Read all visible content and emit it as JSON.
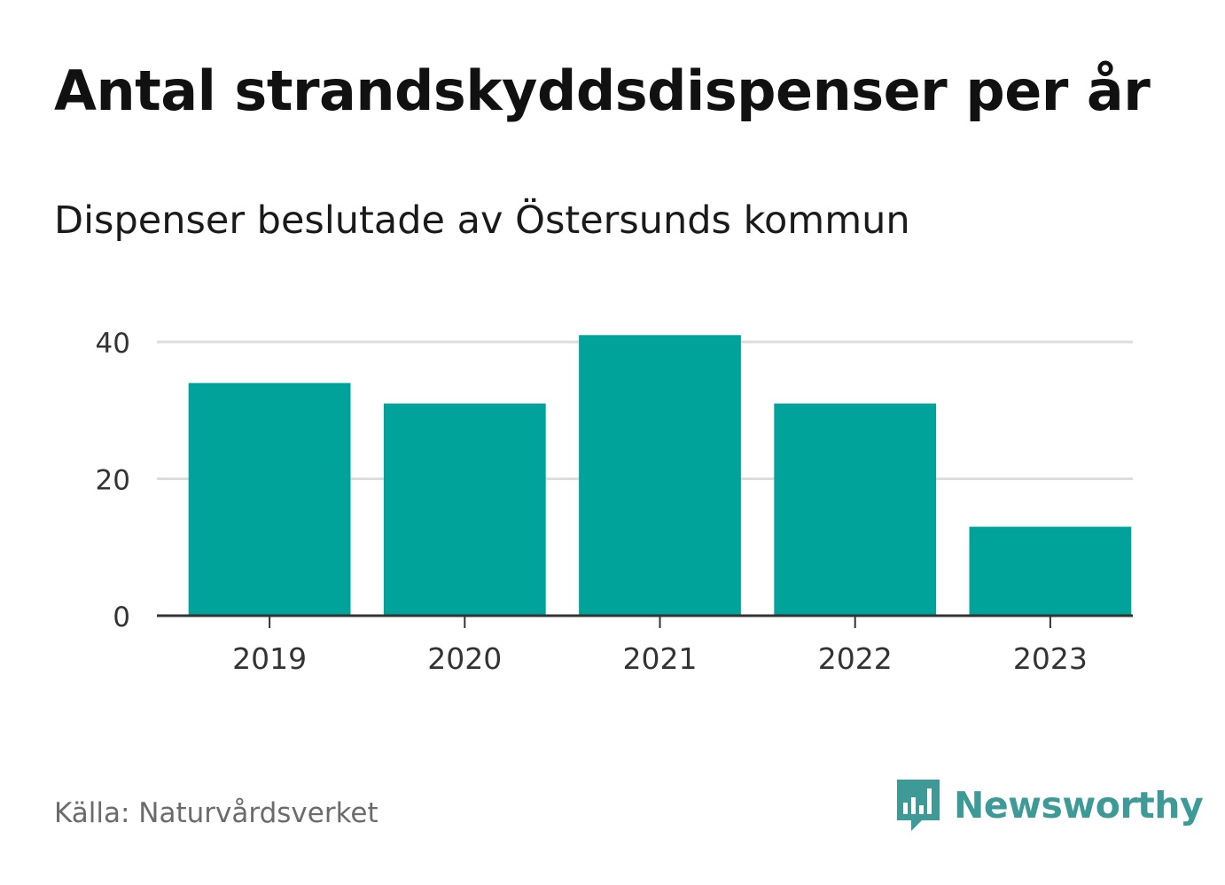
{
  "header": {
    "title": "Antal strandskyddsdispenser per år",
    "subtitle": "Dispenser beslutade av Östersunds kommun"
  },
  "chart_data": {
    "type": "bar",
    "title": "Antal strandskyddsdispenser per år",
    "subtitle": "Dispenser beslutade av Östersunds kommun",
    "categories": [
      "2019",
      "2020",
      "2021",
      "2022",
      "2023"
    ],
    "values": [
      34,
      31,
      41,
      31,
      13
    ],
    "yticks": [
      0,
      20,
      40
    ],
    "ylim": [
      0,
      40
    ],
    "xlabel": "",
    "ylabel": "",
    "grid": true,
    "bar_color": "#00a39a",
    "grid_color": "#dddddd",
    "axis_color": "#333333"
  },
  "footer": {
    "source": "Källa: Naturvårdsverket",
    "brand": "Newsworthy",
    "brand_icon": "bar-chart-speech-bubble-icon",
    "brand_color": "#3d9a96"
  }
}
